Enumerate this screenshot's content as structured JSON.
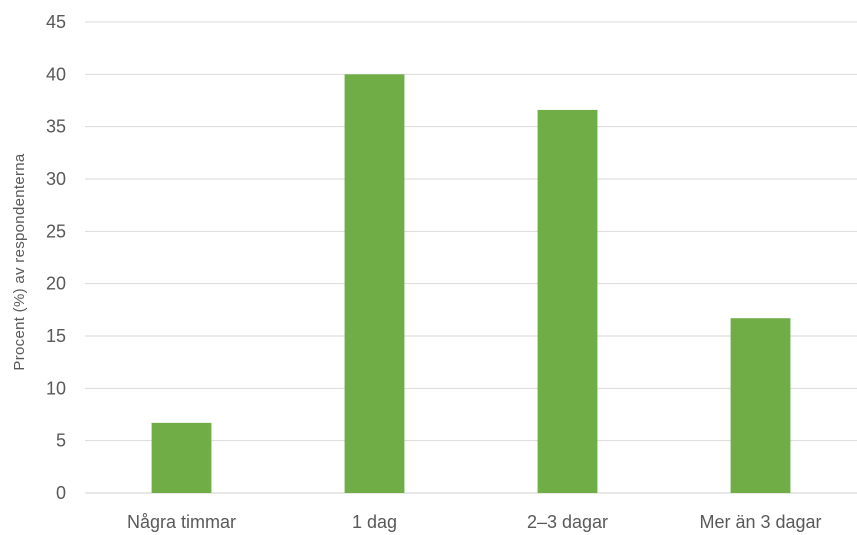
{
  "chart_data": {
    "type": "bar",
    "categories": [
      "Några timmar",
      "1 dag",
      "2–3 dagar",
      "Mer än 3 dagar"
    ],
    "values": [
      6.7,
      40.0,
      36.6,
      16.7
    ],
    "title": "",
    "xlabel": "",
    "ylabel": "Procent (%) av respondenterna",
    "ylim": [
      0,
      45
    ],
    "yticks": [
      0,
      5,
      10,
      15,
      20,
      25,
      30,
      35,
      40,
      45
    ],
    "grid": true,
    "legend": "none",
    "colors": {
      "bar": "#70ad47"
    }
  }
}
